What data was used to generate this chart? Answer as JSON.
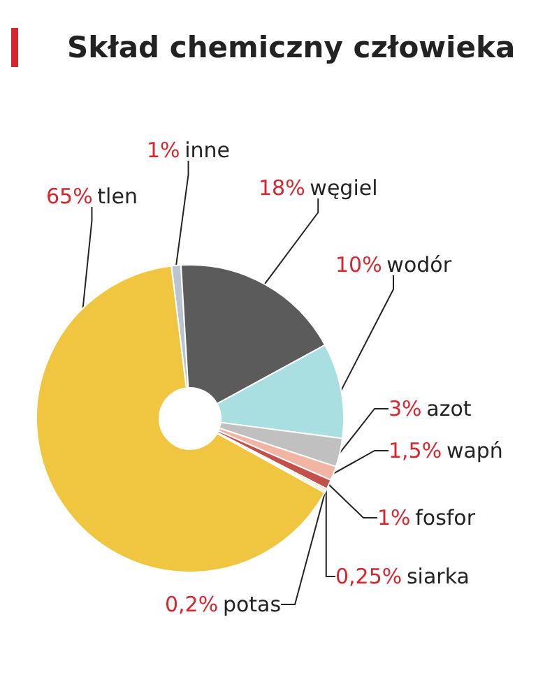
{
  "chart_data": {
    "type": "donut",
    "title": "Skład chemiczny człowieka",
    "categories": [
      "inne",
      "węgiel",
      "wodór",
      "azot",
      "wapń",
      "fosfor",
      "siarka",
      "potas",
      "tlen"
    ],
    "values": [
      1,
      18,
      10,
      3,
      1.5,
      1,
      0.25,
      0.2,
      65
    ],
    "value_labels": [
      "1%",
      "18%",
      "10%",
      "3%",
      "1,5%",
      "1%",
      "0,25%",
      "0,2%",
      "65%"
    ],
    "colors": [
      "#b9c6cf",
      "#5b5b5b",
      "#a9dfe1",
      "#c0c0c0",
      "#f2b5a3",
      "#c4504c",
      "#ede3a5",
      "#cdb35e",
      "#f0c540"
    ],
    "legend": false
  }
}
